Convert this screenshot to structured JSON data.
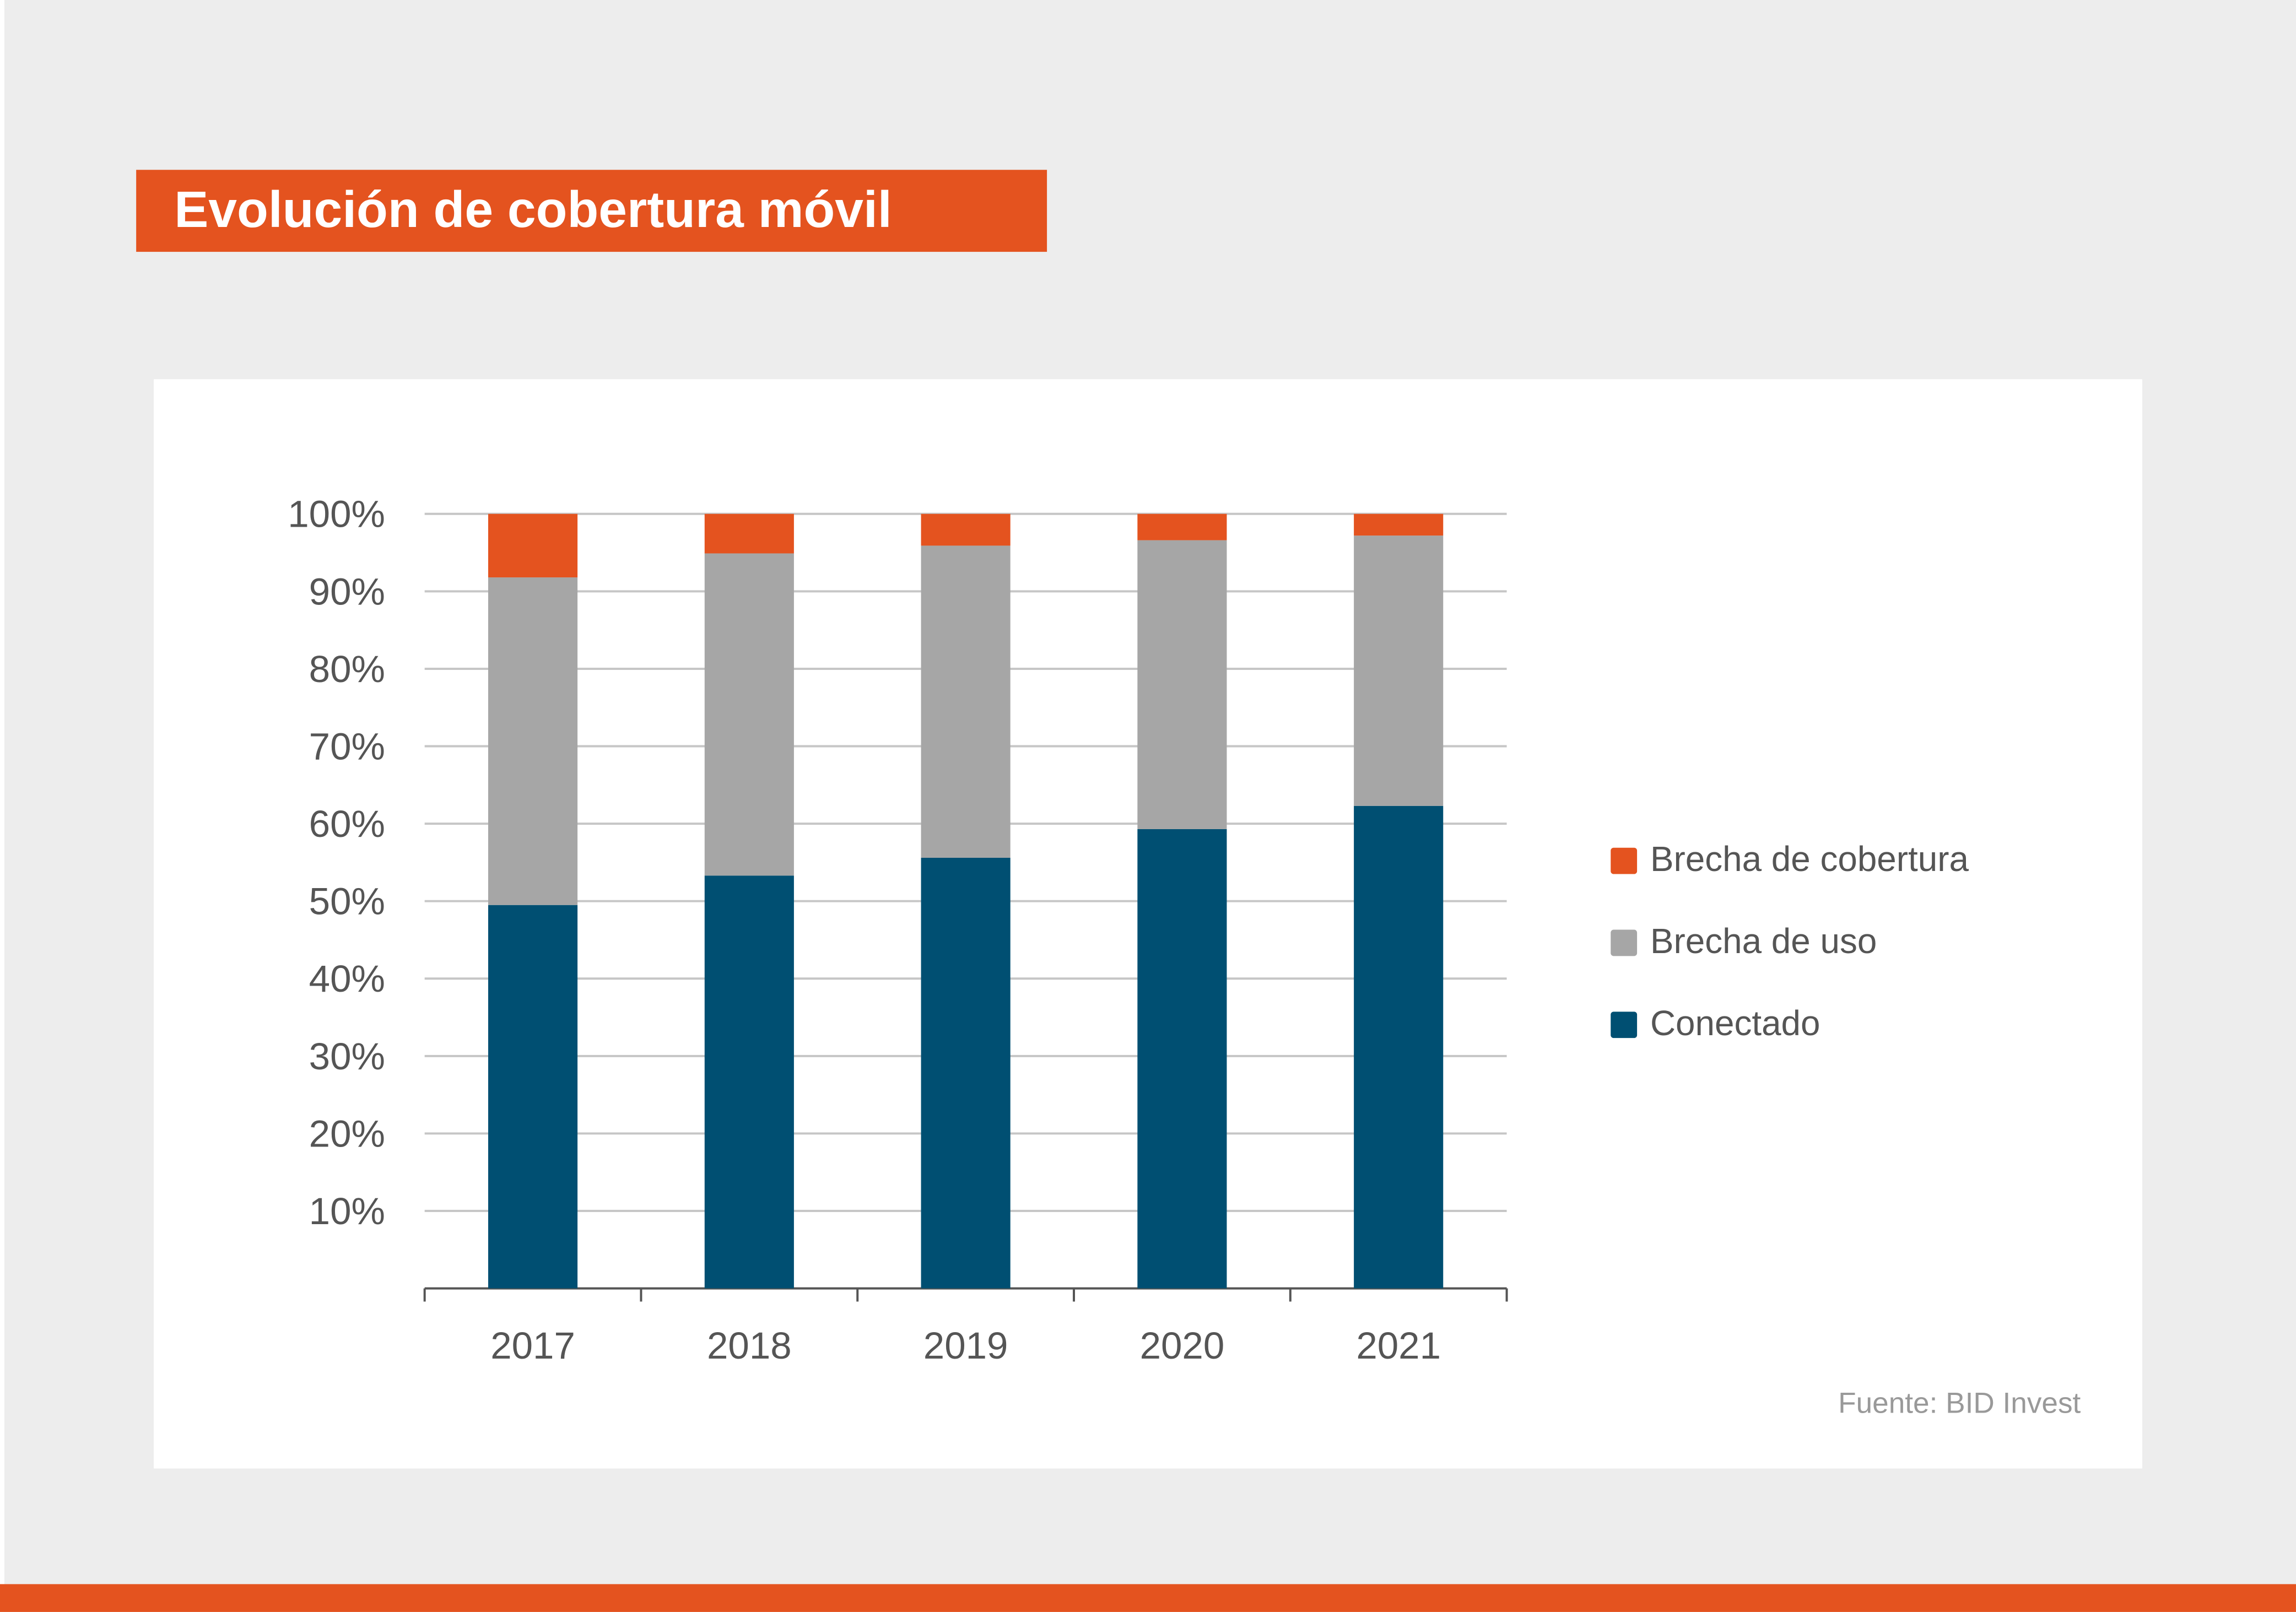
{
  "chart_data": {
    "type": "bar",
    "stacked": true,
    "title": "Evolución de cobertura móvil",
    "categories": [
      "2017",
      "2018",
      "2019",
      "2020",
      "2021"
    ],
    "series": [
      {
        "name": "Conectado",
        "color": "#004f72",
        "values": [
          49.5,
          53.3,
          55.6,
          59.3,
          62.3
        ]
      },
      {
        "name": "Brecha de uso",
        "color": "#a6a6a6",
        "values": [
          42.3,
          41.6,
          40.3,
          37.3,
          34.9
        ]
      },
      {
        "name": "Brecha de cobertura",
        "color": "#e4531f",
        "values": [
          8.2,
          5.1,
          4.1,
          3.4,
          2.8
        ]
      }
    ],
    "yticks": [
      "10%",
      "20%",
      "30%",
      "40%",
      "50%",
      "60%",
      "70%",
      "80%",
      "90%",
      "100%"
    ],
    "ylim": [
      0,
      100
    ],
    "grid": true,
    "legend_placement": "right",
    "source": "Fuente: BID Invest"
  }
}
